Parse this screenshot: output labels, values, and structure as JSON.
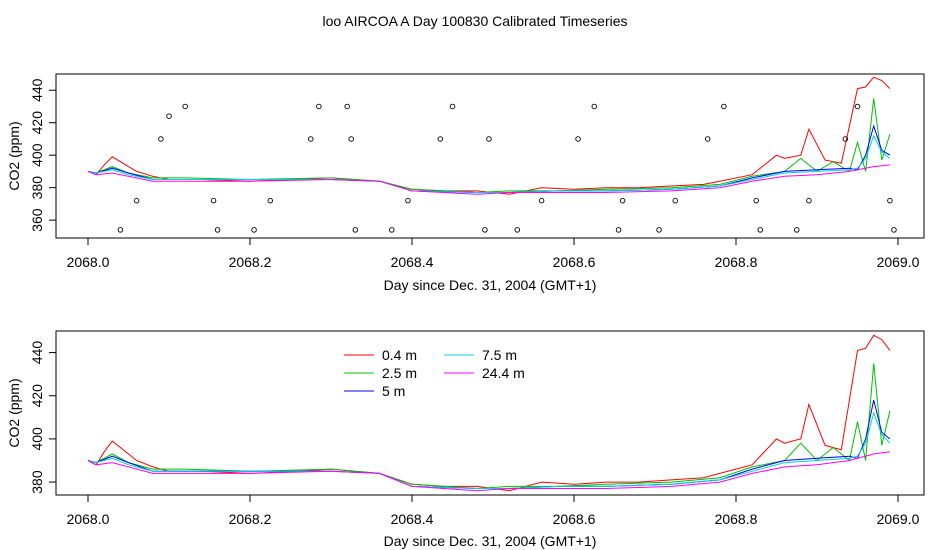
{
  "figure_title": "loo AIRCOA A  Day 100830  Calibrated Timeseries",
  "chart_data": [
    {
      "type": "line",
      "xlabel": "Day since Dec. 31, 2004 (GMT+1)",
      "ylabel": "CO2 (ppm)",
      "xlim": [
        2068.0,
        2069.0
      ],
      "ylim": [
        349,
        450
      ],
      "x_ticks": [
        2068.0,
        2068.2,
        2068.4,
        2068.6,
        2068.8,
        2069.0
      ],
      "x_tick_labels": [
        "2068.0",
        "2068.2",
        "2068.4",
        "2068.6",
        "2068.8",
        "2069.0"
      ],
      "y_ticks": [
        360,
        380,
        400,
        420,
        440
      ],
      "y_tick_labels": [
        "360",
        "380",
        "400",
        "420",
        "440"
      ],
      "legend": false,
      "series": [
        {
          "color": "#ff0000",
          "x": [
            2068.0,
            2068.01,
            2068.02,
            2068.03,
            2068.04,
            2068.06,
            2068.08,
            2068.1,
            2068.14,
            2068.2,
            2068.26,
            2068.3,
            2068.36,
            2068.4,
            2068.44,
            2068.48,
            2068.52,
            2068.56,
            2068.6,
            2068.64,
            2068.68,
            2068.72,
            2068.76,
            2068.78,
            2068.82,
            2068.85,
            2068.86,
            2068.88,
            2068.89,
            2068.91,
            2068.93,
            2068.94,
            2068.95,
            2068.96,
            2068.97,
            2068.98,
            2068.99
          ],
          "y": [
            390,
            388,
            394,
            399,
            396,
            390,
            387,
            385,
            385,
            384,
            385,
            386,
            384,
            379,
            378,
            378,
            376,
            380,
            379,
            380,
            380,
            381,
            382,
            384,
            388,
            400,
            398,
            400,
            416,
            397,
            395,
            418,
            441,
            442,
            448,
            446,
            441
          ]
        },
        {
          "color": "#00c000",
          "x": [
            2068.0,
            2068.01,
            2068.03,
            2068.05,
            2068.08,
            2068.12,
            2068.2,
            2068.3,
            2068.36,
            2068.4,
            2068.48,
            2068.52,
            2068.58,
            2068.64,
            2068.72,
            2068.78,
            2068.82,
            2068.86,
            2068.88,
            2068.9,
            2068.92,
            2068.94,
            2068.95,
            2068.96,
            2068.97,
            2068.98,
            2068.99
          ],
          "y": [
            390,
            389,
            393,
            389,
            386,
            386,
            385,
            386,
            384,
            379,
            377,
            378,
            378,
            379,
            380,
            382,
            387,
            390,
            398,
            390,
            396,
            390,
            408,
            390,
            435,
            397,
            413
          ]
        },
        {
          "color": "#0000ff",
          "x": [
            2068.0,
            2068.01,
            2068.03,
            2068.05,
            2068.08,
            2068.12,
            2068.2,
            2068.3,
            2068.36,
            2068.4,
            2068.48,
            2068.52,
            2068.58,
            2068.64,
            2068.72,
            2068.78,
            2068.82,
            2068.86,
            2068.9,
            2068.94,
            2068.95,
            2068.96,
            2068.97,
            2068.98,
            2068.99
          ],
          "y": [
            390,
            389,
            392,
            389,
            385,
            385,
            385,
            385,
            384,
            378,
            377,
            377,
            378,
            378,
            379,
            381,
            386,
            390,
            391,
            392,
            391,
            400,
            418,
            403,
            400
          ]
        },
        {
          "color": "#00d0e0",
          "x": [
            2068.0,
            2068.01,
            2068.03,
            2068.05,
            2068.08,
            2068.12,
            2068.2,
            2068.3,
            2068.36,
            2068.4,
            2068.48,
            2068.52,
            2068.58,
            2068.64,
            2068.72,
            2068.78,
            2068.82,
            2068.86,
            2068.9,
            2068.94,
            2068.95,
            2068.96,
            2068.97,
            2068.98,
            2068.99
          ],
          "y": [
            390,
            389,
            391,
            388,
            385,
            385,
            385,
            385,
            384,
            378,
            377,
            377,
            378,
            378,
            379,
            381,
            385,
            389,
            390,
            391,
            392,
            398,
            412,
            402,
            398
          ]
        },
        {
          "color": "#ff00ff",
          "x": [
            2068.0,
            2068.01,
            2068.03,
            2068.05,
            2068.08,
            2068.12,
            2068.2,
            2068.3,
            2068.36,
            2068.4,
            2068.48,
            2068.52,
            2068.58,
            2068.64,
            2068.72,
            2068.78,
            2068.82,
            2068.86,
            2068.9,
            2068.94,
            2068.97,
            2068.99
          ],
          "y": [
            390,
            388,
            389,
            387,
            384,
            384,
            384,
            385,
            384,
            378,
            376,
            377,
            377,
            377,
            378,
            380,
            384,
            387,
            388,
            390,
            393,
            394
          ]
        }
      ],
      "points": [
        {
          "x": [
            2068.04,
            2068.06,
            2068.09,
            2068.1,
            2068.12,
            2068.155,
            2068.16,
            2068.205,
            2068.225,
            2068.275,
            2068.285,
            2068.32,
            2068.325,
            2068.33,
            2068.375,
            2068.395,
            2068.435,
            2068.45,
            2068.49,
            2068.495,
            2068.53,
            2068.56,
            2068.605,
            2068.625,
            2068.655,
            2068.66,
            2068.705,
            2068.725,
            2068.765,
            2068.785,
            2068.825,
            2068.83,
            2068.875,
            2068.89,
            2068.935,
            2068.95,
            2068.99,
            2068.995
          ],
          "y": [
            354,
            372,
            410,
            424,
            430,
            372,
            354,
            354,
            372,
            410,
            430,
            430,
            410,
            354,
            354,
            372,
            410,
            430,
            354,
            410,
            354,
            372,
            410,
            430,
            354,
            372,
            354,
            372,
            410,
            430,
            372,
            354,
            354,
            372,
            410,
            430,
            372,
            354
          ]
        }
      ]
    },
    {
      "type": "line",
      "xlabel": "Day since Dec. 31, 2004 (GMT+1)",
      "ylabel": "CO2 (ppm)",
      "xlim": [
        2068.0,
        2069.0
      ],
      "ylim": [
        374,
        450
      ],
      "x_ticks": [
        2068.0,
        2068.2,
        2068.4,
        2068.6,
        2068.8,
        2069.0
      ],
      "x_tick_labels": [
        "2068.0",
        "2068.2",
        "2068.4",
        "2068.6",
        "2068.8",
        "2069.0"
      ],
      "y_ticks": [
        380,
        400,
        420,
        440
      ],
      "y_tick_labels": [
        "380",
        "400",
        "420",
        "440"
      ],
      "legend": true,
      "legend_placement": "top-left",
      "series": [
        {
          "name": "0.4 m",
          "color": "#ff0000",
          "x": [
            2068.0,
            2068.01,
            2068.02,
            2068.03,
            2068.04,
            2068.06,
            2068.08,
            2068.1,
            2068.14,
            2068.2,
            2068.26,
            2068.3,
            2068.36,
            2068.4,
            2068.44,
            2068.48,
            2068.52,
            2068.56,
            2068.6,
            2068.64,
            2068.68,
            2068.72,
            2068.76,
            2068.78,
            2068.82,
            2068.85,
            2068.86,
            2068.88,
            2068.89,
            2068.91,
            2068.93,
            2068.94,
            2068.95,
            2068.96,
            2068.97,
            2068.98,
            2068.99
          ],
          "y": [
            390,
            388,
            394,
            399,
            396,
            390,
            387,
            385,
            385,
            384,
            385,
            386,
            384,
            379,
            378,
            378,
            376,
            380,
            379,
            380,
            380,
            381,
            382,
            384,
            388,
            400,
            398,
            400,
            416,
            397,
            395,
            418,
            441,
            442,
            448,
            446,
            441
          ]
        },
        {
          "name": "2.5 m",
          "color": "#00c000",
          "x": [
            2068.0,
            2068.01,
            2068.03,
            2068.05,
            2068.08,
            2068.12,
            2068.2,
            2068.3,
            2068.36,
            2068.4,
            2068.48,
            2068.52,
            2068.58,
            2068.64,
            2068.72,
            2068.78,
            2068.82,
            2068.86,
            2068.88,
            2068.9,
            2068.92,
            2068.94,
            2068.95,
            2068.96,
            2068.97,
            2068.98,
            2068.99
          ],
          "y": [
            390,
            389,
            393,
            389,
            386,
            386,
            385,
            386,
            384,
            379,
            377,
            378,
            378,
            379,
            380,
            382,
            387,
            390,
            398,
            390,
            396,
            390,
            408,
            390,
            435,
            397,
            413
          ]
        },
        {
          "name": "5 m",
          "color": "#0000ff",
          "x": [
            2068.0,
            2068.01,
            2068.03,
            2068.05,
            2068.08,
            2068.12,
            2068.2,
            2068.3,
            2068.36,
            2068.4,
            2068.48,
            2068.52,
            2068.58,
            2068.64,
            2068.72,
            2068.78,
            2068.82,
            2068.86,
            2068.9,
            2068.94,
            2068.95,
            2068.96,
            2068.97,
            2068.98,
            2068.99
          ],
          "y": [
            390,
            389,
            392,
            389,
            385,
            385,
            385,
            385,
            384,
            378,
            377,
            377,
            378,
            378,
            379,
            381,
            386,
            390,
            391,
            392,
            391,
            400,
            418,
            403,
            400
          ]
        },
        {
          "name": "7.5 m",
          "color": "#00d0e0",
          "x": [
            2068.0,
            2068.01,
            2068.03,
            2068.05,
            2068.08,
            2068.12,
            2068.2,
            2068.3,
            2068.36,
            2068.4,
            2068.48,
            2068.52,
            2068.58,
            2068.64,
            2068.72,
            2068.78,
            2068.82,
            2068.86,
            2068.9,
            2068.94,
            2068.95,
            2068.96,
            2068.97,
            2068.98,
            2068.99
          ],
          "y": [
            390,
            389,
            391,
            388,
            385,
            385,
            385,
            385,
            384,
            378,
            377,
            377,
            378,
            378,
            379,
            381,
            385,
            389,
            390,
            391,
            392,
            398,
            412,
            402,
            398
          ]
        },
        {
          "name": "24.4 m",
          "color": "#ff00ff",
          "x": [
            2068.0,
            2068.01,
            2068.03,
            2068.05,
            2068.08,
            2068.12,
            2068.2,
            2068.3,
            2068.36,
            2068.4,
            2068.48,
            2068.52,
            2068.58,
            2068.64,
            2068.72,
            2068.78,
            2068.82,
            2068.86,
            2068.9,
            2068.94,
            2068.97,
            2068.99
          ],
          "y": [
            390,
            388,
            389,
            387,
            384,
            384,
            384,
            385,
            384,
            378,
            376,
            377,
            377,
            377,
            378,
            380,
            384,
            387,
            388,
            390,
            393,
            394
          ]
        }
      ]
    }
  ]
}
